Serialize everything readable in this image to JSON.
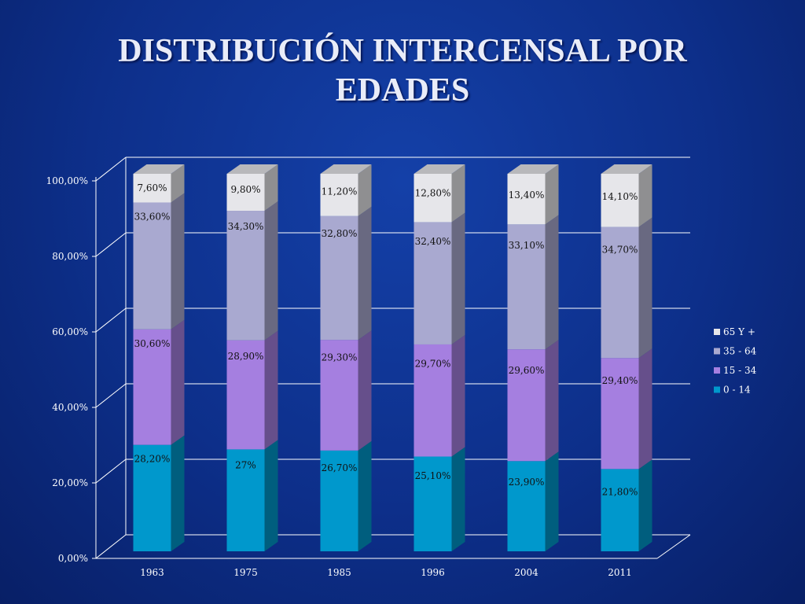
{
  "slide": {
    "title_line1": "DISTRIBUCIÓN INTERCENSAL POR",
    "title_line2": "EDADES"
  },
  "chart_data": {
    "type": "bar",
    "stacked": true,
    "three_d": true,
    "categories": [
      "1963",
      "1975",
      "1985",
      "1996",
      "2004",
      "2011"
    ],
    "series": [
      {
        "name": "0 - 14",
        "values": [
          28.2,
          27.0,
          26.7,
          25.1,
          23.9,
          21.8
        ],
        "labels": [
          "28,20%",
          "27%",
          "26,70%",
          "25,10%",
          "23,90%",
          "21,80%"
        ],
        "color": "#0098cc"
      },
      {
        "name": "15 - 34",
        "values": [
          30.6,
          28.9,
          29.3,
          29.7,
          29.6,
          29.4
        ],
        "labels": [
          "30,60%",
          "28,90%",
          "29,30%",
          "29,70%",
          "29,60%",
          "29,40%"
        ],
        "color": "#a57fe0"
      },
      {
        "name": "35 - 64",
        "values": [
          33.6,
          34.3,
          32.8,
          32.4,
          33.1,
          34.7
        ],
        "labels": [
          "33,60%",
          "34,30%",
          "32,80%",
          "32,40%",
          "33,10%",
          "34,70%"
        ],
        "color": "#a9a9d0"
      },
      {
        "name": "65 Y +",
        "values": [
          7.6,
          9.8,
          11.2,
          12.8,
          13.4,
          14.1
        ],
        "labels": [
          "7,60%",
          "9,80%",
          "11,20%",
          "12,80%",
          "13,40%",
          "14,10%"
        ],
        "color": "#e6e6ea"
      }
    ],
    "y_ticks": [
      "0,00%",
      "20,00%",
      "40,00%",
      "60,00%",
      "80,00%",
      "100,00%"
    ],
    "ylim": [
      0,
      100
    ],
    "grid": true,
    "legend_position": "right"
  }
}
